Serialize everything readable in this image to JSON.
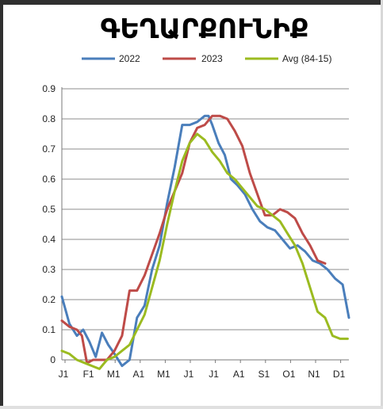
{
  "chart_data": {
    "type": "line",
    "title": "ԳԵՂԱՐՔՈՒՆԻՔ",
    "xlabel": "",
    "ylabel": "",
    "ylim": [
      0,
      0.9
    ],
    "yticks": [
      "0",
      "0.1",
      "0.2",
      "0.3",
      "0.4",
      "0.5",
      "0.6",
      "0.7",
      "0.8",
      "0.9"
    ],
    "categories": [
      "J1",
      "F1",
      "M1",
      "A1",
      "M1",
      "J1",
      "J1",
      "A1",
      "S1",
      "O1",
      "N1",
      "D1"
    ],
    "grid": true,
    "legend_placement": "top",
    "series": [
      {
        "name": "2022",
        "color": "#4a7ebb",
        "x": [
          0,
          0.3,
          0.6,
          0.85,
          1.1,
          1.35,
          1.6,
          1.85,
          2.1,
          2.4,
          2.7,
          3.0,
          3.3,
          3.6,
          3.9,
          4.2,
          4.5,
          4.8,
          5.1,
          5.4,
          5.7,
          5.85,
          6.0,
          6.25,
          6.5,
          6.75,
          7.0,
          7.3,
          7.6,
          7.9,
          8.2,
          8.5,
          8.8,
          9.1,
          9.4,
          9.7,
          10.0,
          10.3,
          10.6,
          10.9,
          11.2,
          11.45
        ],
        "values": [
          0.21,
          0.12,
          0.08,
          0.1,
          0.06,
          0.01,
          0.09,
          0.05,
          0.02,
          -0.02,
          0.0,
          0.14,
          0.18,
          0.3,
          0.38,
          0.52,
          0.64,
          0.78,
          0.78,
          0.79,
          0.81,
          0.81,
          0.78,
          0.72,
          0.68,
          0.6,
          0.58,
          0.55,
          0.5,
          0.46,
          0.44,
          0.43,
          0.4,
          0.37,
          0.38,
          0.36,
          0.33,
          0.32,
          0.3,
          0.27,
          0.25,
          0.14
        ]
      },
      {
        "name": "2023",
        "color": "#be4b48",
        "x": [
          0,
          0.3,
          0.6,
          0.8,
          1.0,
          1.25,
          1.5,
          1.8,
          2.1,
          2.4,
          2.7,
          3.0,
          3.3,
          3.6,
          3.9,
          4.2,
          4.5,
          4.8,
          5.1,
          5.4,
          5.7,
          6.0,
          6.3,
          6.6,
          6.9,
          7.2,
          7.5,
          7.8,
          8.1,
          8.4,
          8.7,
          9.0,
          9.3,
          9.6,
          9.9,
          10.2,
          10.5
        ],
        "values": [
          0.13,
          0.11,
          0.1,
          0.08,
          -0.01,
          0.0,
          0.0,
          0.0,
          0.03,
          0.08,
          0.23,
          0.23,
          0.28,
          0.35,
          0.42,
          0.5,
          0.56,
          0.62,
          0.72,
          0.77,
          0.78,
          0.81,
          0.81,
          0.8,
          0.76,
          0.71,
          0.62,
          0.55,
          0.48,
          0.48,
          0.5,
          0.49,
          0.47,
          0.42,
          0.38,
          0.33,
          0.32
        ]
      },
      {
        "name": "Avg (84-15)",
        "color": "#9bbb20",
        "x": [
          0,
          0.3,
          0.6,
          0.9,
          1.2,
          1.5,
          1.8,
          2.1,
          2.4,
          2.7,
          3.0,
          3.3,
          3.6,
          3.9,
          4.2,
          4.5,
          4.8,
          5.1,
          5.4,
          5.7,
          6.0,
          6.3,
          6.6,
          6.9,
          7.2,
          7.5,
          7.8,
          8.1,
          8.4,
          8.7,
          9.0,
          9.3,
          9.6,
          9.9,
          10.2,
          10.5,
          10.8,
          11.1,
          11.4
        ],
        "values": [
          0.03,
          0.02,
          0.0,
          -0.01,
          -0.02,
          -0.03,
          0.0,
          0.01,
          0.03,
          0.05,
          0.1,
          0.15,
          0.24,
          0.33,
          0.45,
          0.56,
          0.66,
          0.72,
          0.75,
          0.73,
          0.69,
          0.66,
          0.62,
          0.6,
          0.57,
          0.54,
          0.51,
          0.5,
          0.48,
          0.46,
          0.42,
          0.38,
          0.32,
          0.24,
          0.16,
          0.14,
          0.08,
          0.07,
          0.07
        ]
      }
    ]
  }
}
